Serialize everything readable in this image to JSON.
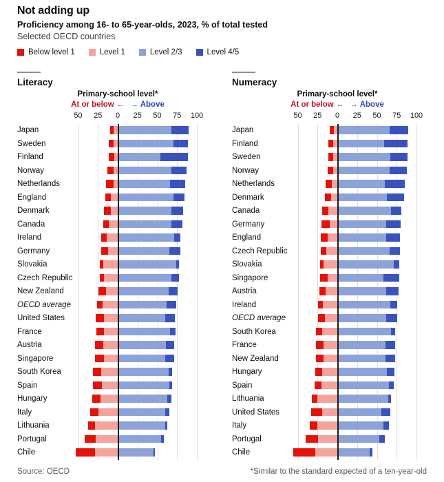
{
  "title": "Not adding up",
  "subtitle": "Proficiency among 16- to 65-year-olds, 2023, % of total tested",
  "subtitle_secondary": "Selected OECD countries",
  "legend": [
    {
      "label": "Below level 1",
      "color": "#e3120b"
    },
    {
      "label": "Level 1",
      "color": "#f5a49d"
    },
    {
      "label": "Level 2/3",
      "color": "#8ca3d9"
    },
    {
      "label": "Level 4/5",
      "color": "#3a53bc"
    }
  ],
  "colors": {
    "red_text": "#c01423",
    "blue_text": "#2e45b8",
    "grid": "#dedede",
    "zero_line": "#1a1a1a",
    "keyline": "#8f8f8f"
  },
  "footer": {
    "source": "Source: OECD",
    "note": "*Similar to the standard expected of a ten-year-old"
  },
  "chart_data": [
    {
      "type": "bar",
      "orientation": "horizontal-diverging-stacked",
      "title": "Literacy",
      "header_title": "Primary-school level*",
      "header_left": "At or below ←",
      "header_right": "→ Above",
      "xlim": [
        -55,
        100
      ],
      "axis_ticks": [
        {
          "u": -50,
          "label": "50"
        },
        {
          "u": -25,
          "label": "25"
        },
        {
          "u": 0,
          "label": "0"
        },
        {
          "u": 25,
          "label": "25"
        },
        {
          "u": 50,
          "label": "50"
        },
        {
          "u": 75,
          "label": "75"
        },
        {
          "u": 100,
          "label": "100"
        }
      ],
      "italic_category": "OECD average",
      "categories": [
        "Japan",
        "Sweden",
        "Finland",
        "Norway",
        "Netherlands",
        "England",
        "Denmark",
        "Canada",
        "Ireland",
        "Germany",
        "Slovakia",
        "Czech Republic",
        "New Zealand",
        "OECD average",
        "United States",
        "France",
        "Austria",
        "Singapore",
        "South Korea",
        "Spain",
        "Hungary",
        "Italy",
        "Lithuania",
        "Portugal",
        "Chile"
      ],
      "series": [
        {
          "name": "Below level 1",
          "values": [
            5,
            6,
            7,
            8,
            10,
            7,
            8,
            8,
            7,
            9,
            5,
            6,
            9,
            7,
            11,
            10,
            11,
            12,
            10,
            11,
            10,
            11,
            8,
            14,
            24
          ]
        },
        {
          "name": "Level 1",
          "values": [
            5,
            5,
            4,
            5,
            5,
            9,
            9,
            10,
            14,
            12,
            18,
            17,
            15,
            19,
            17,
            17,
            18,
            17,
            21,
            20,
            22,
            24,
            29,
            28,
            29
          ]
        },
        {
          "name": "Level 2/3",
          "values": [
            68,
            70,
            54,
            68,
            66,
            70,
            68,
            68,
            71,
            65,
            74,
            68,
            64,
            62,
            60,
            66,
            61,
            60,
            64,
            65,
            63,
            60,
            60,
            55,
            45
          ]
        },
        {
          "name": "Level 4/5",
          "values": [
            22,
            19,
            35,
            19,
            19,
            14,
            15,
            14,
            8,
            14,
            3,
            9,
            12,
            12,
            12,
            7,
            10,
            11,
            5,
            4,
            5,
            5,
            3,
            3,
            2
          ]
        }
      ]
    },
    {
      "type": "bar",
      "orientation": "horizontal-diverging-stacked",
      "title": "Numeracy",
      "header_title": "Primary-school level*",
      "header_left": "At or below ←",
      "header_right": "→ Above",
      "xlim": [
        -58,
        100
      ],
      "axis_ticks": [
        {
          "u": -50,
          "label": "50"
        },
        {
          "u": -25,
          "label": "25"
        },
        {
          "u": 0,
          "label": "0"
        },
        {
          "u": 25,
          "label": "25"
        },
        {
          "u": 50,
          "label": "50"
        },
        {
          "u": 75,
          "label": "75"
        },
        {
          "u": 100,
          "label": "100"
        }
      ],
      "italic_category": "OECD average",
      "categories": [
        "Japan",
        "Finland",
        "Sweden",
        "Norway",
        "Netherlands",
        "Denmark",
        "Canada",
        "Germany",
        "England",
        "Czech Republic",
        "Slovakia",
        "Singapore",
        "Austria",
        "Ireland",
        "OECD average",
        "South Korea",
        "France",
        "New Zealand",
        "Hungary",
        "Spain",
        "Lithuania",
        "United States",
        "Italy",
        "Portugal",
        "Chile"
      ],
      "series": [
        {
          "name": "Below level 1",
          "values": [
            6,
            6,
            6,
            7,
            8,
            8,
            8,
            10,
            9,
            7,
            5,
            10,
            8,
            6,
            8,
            8,
            10,
            10,
            9,
            9,
            7,
            14,
            10,
            16,
            28
          ]
        },
        {
          "name": "Level 1",
          "values": [
            4,
            5,
            5,
            5,
            7,
            8,
            11,
            10,
            12,
            14,
            17,
            12,
            15,
            18,
            16,
            19,
            17,
            17,
            19,
            20,
            25,
            19,
            25,
            24,
            28
          ]
        },
        {
          "name": "Level 2/3",
          "values": [
            66,
            59,
            67,
            66,
            60,
            63,
            68,
            62,
            62,
            66,
            71,
            58,
            62,
            67,
            62,
            68,
            61,
            61,
            63,
            65,
            64,
            56,
            58,
            53,
            41
          ]
        },
        {
          "name": "Level 4/5",
          "values": [
            24,
            30,
            22,
            22,
            25,
            21,
            13,
            18,
            17,
            13,
            7,
            20,
            15,
            9,
            14,
            5,
            12,
            12,
            9,
            6,
            4,
            11,
            7,
            7,
            3
          ]
        }
      ]
    }
  ]
}
